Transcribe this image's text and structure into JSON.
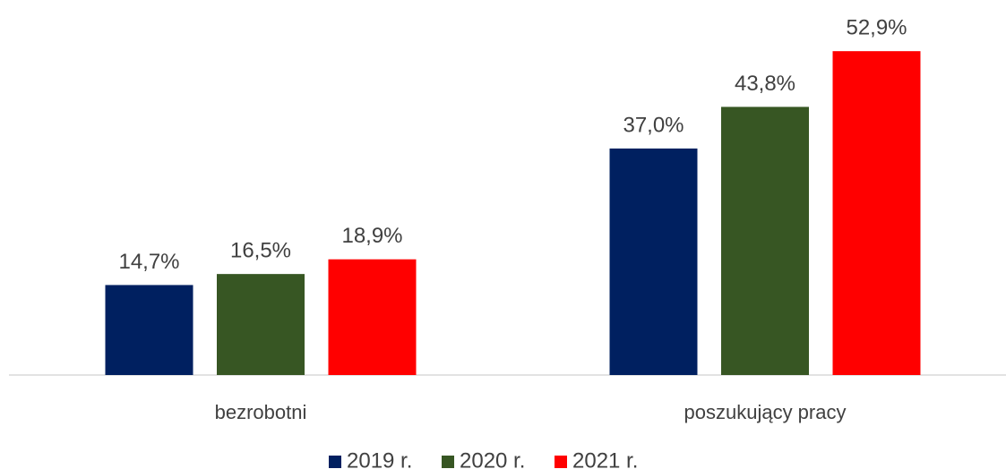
{
  "chart_data": {
    "type": "bar",
    "categories": [
      "bezrobotni",
      "poszukujący pracy"
    ],
    "series": [
      {
        "name": "2019 r.",
        "color": "#002060",
        "values": [
          14.7,
          37.0
        ],
        "value_labels": [
          "14,7%",
          "37,0%"
        ]
      },
      {
        "name": "2020 r.",
        "color": "#375623",
        "values": [
          16.5,
          43.8
        ],
        "value_labels": [
          "16,5%",
          "43,8%"
        ]
      },
      {
        "name": "2021 r.",
        "color": "#ff0000",
        "values": [
          18.9,
          52.9
        ],
        "value_labels": [
          "18,9%",
          "52,9%"
        ]
      }
    ],
    "legend": "bottom"
  }
}
